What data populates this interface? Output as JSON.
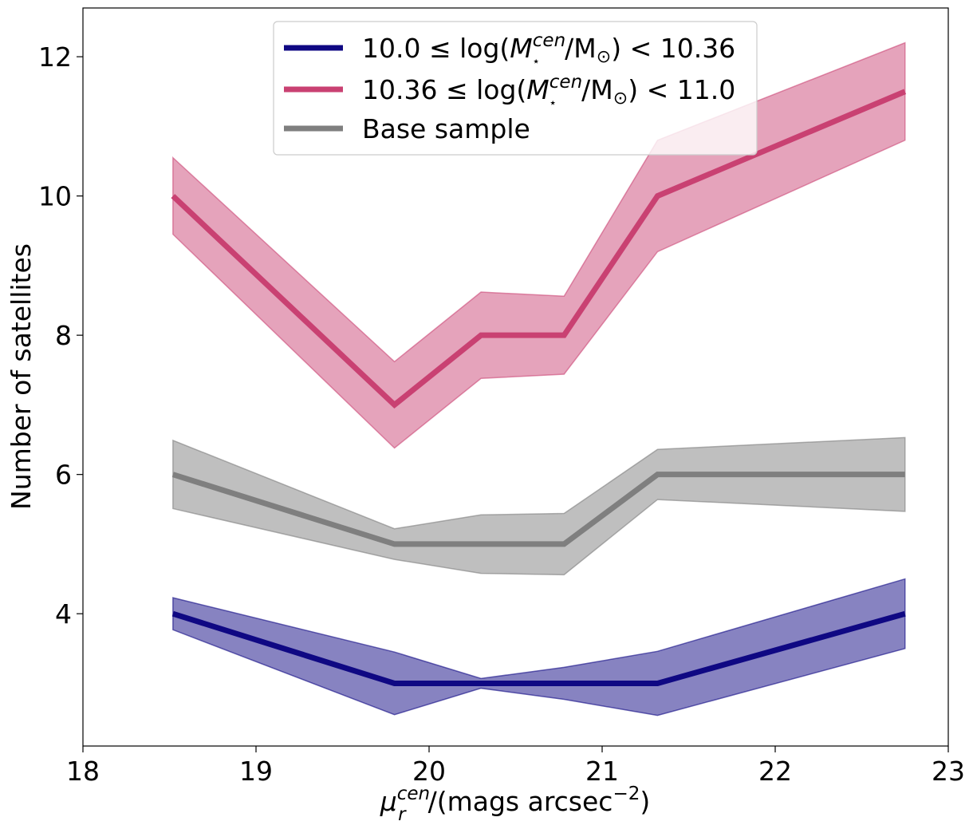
{
  "chart_data": {
    "type": "line",
    "title": "",
    "xlabel": {
      "symbol": "μ",
      "sub": "r",
      "sup": "cen",
      "units": "/(mags arcsec",
      "exp": "−2",
      "close": ")"
    },
    "ylabel": "Number of satellites",
    "xlim": [
      18,
      23
    ],
    "ylim": [
      2.1,
      12.7
    ],
    "grid": false,
    "legend_position": "top-center",
    "xticks": [
      "18",
      "19",
      "20",
      "21",
      "22",
      "23"
    ],
    "yticks": [
      "4",
      "6",
      "8",
      "10",
      "12"
    ],
    "series": [
      {
        "name": "10.0 ≤ log(M⋆cen/M⊙) < 10.36",
        "legend_parts": {
          "pre": "10.0 ≤ log(",
          "M": "M",
          "sub": "⋆",
          "sup": "cen",
          "post": "/M",
          "sun": "⊙",
          "tail": ") < 10.36"
        },
        "color": "#0f0883",
        "fill": "#0f0883",
        "x": [
          18.52,
          19.8,
          20.3,
          20.78,
          21.32,
          22.75
        ],
        "y": [
          4.0,
          3.0,
          3.0,
          3.0,
          3.0,
          4.0
        ],
        "lower": [
          3.77,
          2.55,
          2.93,
          2.77,
          2.54,
          3.5
        ],
        "upper": [
          4.23,
          3.45,
          3.07,
          3.23,
          3.46,
          4.5
        ]
      },
      {
        "name": "10.36 ≤ log(M⋆cen/M⊙) < 11.0",
        "legend_parts": {
          "pre": "10.36 ≤ log(",
          "M": "M",
          "sub": "⋆",
          "sup": "cen",
          "post": "/M",
          "sun": "⊙",
          "tail": ") < 11.0"
        },
        "color": "#c94172",
        "fill": "#cc4877",
        "x": [
          18.52,
          19.8,
          20.3,
          20.78,
          21.32,
          22.75
        ],
        "y": [
          10.0,
          7.0,
          8.0,
          8.0,
          10.0,
          11.5
        ],
        "lower": [
          9.45,
          6.38,
          7.38,
          7.44,
          9.2,
          10.8
        ],
        "upper": [
          10.55,
          7.62,
          8.62,
          8.56,
          10.8,
          12.2
        ]
      },
      {
        "name": "Base sample",
        "legend_parts": {
          "pre": "Base sample"
        },
        "color": "#7f7f7f",
        "fill": "#7f7f7f",
        "x": [
          18.52,
          19.8,
          20.3,
          20.78,
          21.32,
          22.75
        ],
        "y": [
          6.0,
          5.0,
          5.0,
          5.0,
          6.0,
          6.0
        ],
        "lower": [
          5.51,
          4.78,
          4.58,
          4.56,
          5.64,
          5.47
        ],
        "upper": [
          6.49,
          5.22,
          5.42,
          5.44,
          6.36,
          6.53
        ]
      }
    ]
  }
}
